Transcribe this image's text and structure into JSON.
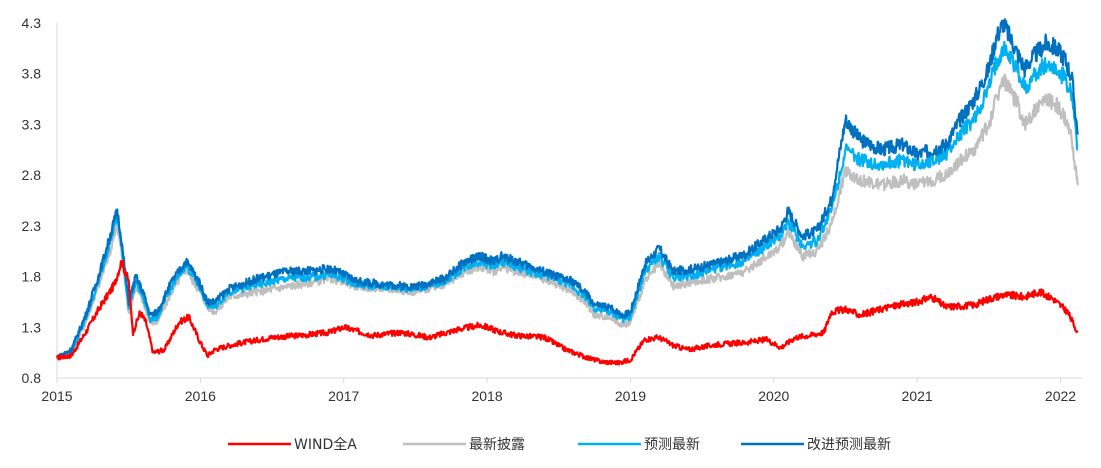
{
  "chart_data": {
    "type": "line",
    "title": "",
    "xlabel": "",
    "ylabel": "",
    "x_ticks": [
      "2015",
      "2016",
      "2017",
      "2018",
      "2019",
      "2020",
      "2021",
      "2022"
    ],
    "y_ticks": [
      "0.8",
      "1.3",
      "1.8",
      "2.3",
      "2.8",
      "3.3",
      "3.8",
      "4.3"
    ],
    "ylim": [
      0.8,
      4.3
    ],
    "xlim": [
      2015.0,
      2022.15
    ],
    "grid": false,
    "legend_position": "bottom",
    "series": [
      {
        "name": "WIND全A",
        "color": "#ff0000",
        "x": [
          2015.0,
          2015.1,
          2015.2,
          2015.3,
          2015.4,
          2015.45,
          2015.5,
          2015.53,
          2015.58,
          2015.62,
          2015.67,
          2015.75,
          2015.85,
          2015.92,
          2016.0,
          2016.05,
          2016.1,
          2016.2,
          2016.3,
          2016.5,
          2016.7,
          2016.9,
          2017.0,
          2017.2,
          2017.4,
          2017.6,
          2017.8,
          2017.95,
          2018.0,
          2018.1,
          2018.2,
          2018.4,
          2018.55,
          2018.7,
          2018.8,
          2018.92,
          2019.0,
          2019.1,
          2019.2,
          2019.3,
          2019.4,
          2019.6,
          2019.8,
          2019.95,
          2020.05,
          2020.15,
          2020.25,
          2020.35,
          2020.4,
          2020.5,
          2020.6,
          2020.8,
          2021.0,
          2021.1,
          2021.2,
          2021.4,
          2021.5,
          2021.6,
          2021.75,
          2021.85,
          2021.95,
          2022.05,
          2022.12
        ],
        "values": [
          1.0,
          1.02,
          1.25,
          1.5,
          1.72,
          1.95,
          1.75,
          1.25,
          1.45,
          1.35,
          1.05,
          1.08,
          1.35,
          1.4,
          1.15,
          1.02,
          1.08,
          1.12,
          1.15,
          1.2,
          1.22,
          1.25,
          1.3,
          1.22,
          1.25,
          1.2,
          1.28,
          1.32,
          1.3,
          1.25,
          1.22,
          1.2,
          1.08,
          1.0,
          0.96,
          0.95,
          0.98,
          1.18,
          1.2,
          1.12,
          1.08,
          1.13,
          1.15,
          1.18,
          1.1,
          1.2,
          1.22,
          1.25,
          1.45,
          1.48,
          1.42,
          1.5,
          1.55,
          1.6,
          1.5,
          1.52,
          1.58,
          1.62,
          1.6,
          1.65,
          1.58,
          1.45,
          1.25
        ]
      },
      {
        "name": "最新披露",
        "color": "#bfbfbf",
        "x": [
          2015.0,
          2015.1,
          2015.2,
          2015.3,
          2015.38,
          2015.42,
          2015.45,
          2015.5,
          2015.55,
          2015.6,
          2015.65,
          2015.7,
          2015.8,
          2015.9,
          2015.95,
          2016.0,
          2016.05,
          2016.1,
          2016.2,
          2016.4,
          2016.6,
          2016.8,
          2016.9,
          2017.0,
          2017.1,
          2017.3,
          2017.5,
          2017.7,
          2017.85,
          2017.95,
          2018.05,
          2018.1,
          2018.2,
          2018.3,
          2018.45,
          2018.6,
          2018.7,
          2018.75,
          2018.85,
          2018.95,
          2019.0,
          2019.1,
          2019.2,
          2019.3,
          2019.45,
          2019.65,
          2019.8,
          2019.95,
          2020.05,
          2020.1,
          2020.2,
          2020.3,
          2020.4,
          2020.5,
          2020.6,
          2020.75,
          2020.9,
          2021.0,
          2021.1,
          2021.2,
          2021.3,
          2021.4,
          2021.5,
          2021.55,
          2021.6,
          2021.7,
          2021.75,
          2021.8,
          2021.9,
          2021.97,
          2022.03,
          2022.08,
          2022.12
        ],
        "values": [
          1.0,
          1.05,
          1.35,
          1.75,
          2.1,
          2.3,
          2.05,
          1.45,
          1.7,
          1.55,
          1.35,
          1.35,
          1.65,
          1.88,
          1.75,
          1.65,
          1.5,
          1.45,
          1.6,
          1.65,
          1.7,
          1.75,
          1.78,
          1.75,
          1.7,
          1.68,
          1.65,
          1.72,
          1.85,
          1.9,
          1.85,
          1.9,
          1.85,
          1.82,
          1.75,
          1.65,
          1.52,
          1.42,
          1.4,
          1.32,
          1.35,
          1.75,
          1.92,
          1.7,
          1.75,
          1.8,
          1.85,
          2.0,
          2.1,
          2.25,
          2.0,
          2.05,
          2.3,
          2.85,
          2.75,
          2.7,
          2.75,
          2.7,
          2.75,
          2.8,
          2.95,
          3.05,
          3.3,
          3.55,
          3.75,
          3.5,
          3.3,
          3.4,
          3.55,
          3.5,
          3.35,
          3.15,
          2.7
        ]
      },
      {
        "name": "预测最新",
        "color": "#00b0f0",
        "x": [
          2015.0,
          2015.1,
          2015.2,
          2015.3,
          2015.38,
          2015.42,
          2015.45,
          2015.5,
          2015.55,
          2015.6,
          2015.65,
          2015.7,
          2015.8,
          2015.9,
          2015.95,
          2016.0,
          2016.05,
          2016.1,
          2016.2,
          2016.4,
          2016.6,
          2016.8,
          2016.9,
          2017.0,
          2017.1,
          2017.3,
          2017.5,
          2017.7,
          2017.85,
          2017.95,
          2018.05,
          2018.1,
          2018.2,
          2018.3,
          2018.45,
          2018.6,
          2018.7,
          2018.75,
          2018.85,
          2018.95,
          2019.0,
          2019.1,
          2019.2,
          2019.3,
          2019.45,
          2019.65,
          2019.8,
          2019.95,
          2020.05,
          2020.1,
          2020.2,
          2020.3,
          2020.4,
          2020.5,
          2020.6,
          2020.75,
          2020.9,
          2021.0,
          2021.1,
          2021.2,
          2021.3,
          2021.4,
          2021.5,
          2021.55,
          2021.6,
          2021.7,
          2021.75,
          2021.8,
          2021.9,
          2021.97,
          2022.03,
          2022.08,
          2022.12
        ],
        "values": [
          1.0,
          1.06,
          1.38,
          1.8,
          2.2,
          2.4,
          2.1,
          1.5,
          1.75,
          1.6,
          1.38,
          1.4,
          1.7,
          1.92,
          1.8,
          1.68,
          1.52,
          1.5,
          1.65,
          1.72,
          1.78,
          1.8,
          1.82,
          1.78,
          1.72,
          1.7,
          1.68,
          1.75,
          1.9,
          1.95,
          1.9,
          1.95,
          1.9,
          1.85,
          1.8,
          1.7,
          1.58,
          1.48,
          1.45,
          1.38,
          1.4,
          1.85,
          2.0,
          1.78,
          1.82,
          1.9,
          1.95,
          2.1,
          2.2,
          2.35,
          2.1,
          2.15,
          2.45,
          3.05,
          2.95,
          2.9,
          2.95,
          2.9,
          2.95,
          3.0,
          3.2,
          3.35,
          3.65,
          3.9,
          4.05,
          3.85,
          3.65,
          3.75,
          3.9,
          3.85,
          3.75,
          3.6,
          3.05
        ]
      },
      {
        "name": "改进预测最新",
        "color": "#0070c0",
        "x": [
          2015.0,
          2015.1,
          2015.2,
          2015.3,
          2015.38,
          2015.42,
          2015.45,
          2015.5,
          2015.55,
          2015.6,
          2015.65,
          2015.7,
          2015.8,
          2015.9,
          2015.95,
          2016.0,
          2016.05,
          2016.1,
          2016.2,
          2016.4,
          2016.6,
          2016.8,
          2016.9,
          2017.0,
          2017.1,
          2017.3,
          2017.5,
          2017.7,
          2017.85,
          2017.95,
          2018.05,
          2018.1,
          2018.2,
          2018.3,
          2018.45,
          2018.6,
          2018.7,
          2018.75,
          2018.85,
          2018.95,
          2019.0,
          2019.1,
          2019.2,
          2019.3,
          2019.45,
          2019.65,
          2019.8,
          2019.95,
          2020.05,
          2020.1,
          2020.2,
          2020.3,
          2020.4,
          2020.5,
          2020.6,
          2020.75,
          2020.9,
          2021.0,
          2021.1,
          2021.2,
          2021.3,
          2021.4,
          2021.5,
          2021.55,
          2021.6,
          2021.7,
          2021.75,
          2021.8,
          2021.9,
          2021.97,
          2022.03,
          2022.08,
          2022.12
        ],
        "values": [
          1.0,
          1.08,
          1.42,
          1.85,
          2.25,
          2.45,
          2.15,
          1.55,
          1.8,
          1.65,
          1.42,
          1.45,
          1.75,
          1.95,
          1.85,
          1.72,
          1.55,
          1.55,
          1.68,
          1.78,
          1.85,
          1.86,
          1.88,
          1.82,
          1.75,
          1.72,
          1.7,
          1.78,
          1.95,
          2.0,
          1.95,
          2.0,
          1.95,
          1.9,
          1.82,
          1.75,
          1.62,
          1.52,
          1.5,
          1.42,
          1.45,
          1.92,
          2.08,
          1.85,
          1.88,
          1.95,
          2.02,
          2.18,
          2.28,
          2.45,
          2.2,
          2.25,
          2.55,
          3.35,
          3.15,
          3.05,
          3.1,
          3.0,
          3.05,
          3.1,
          3.35,
          3.55,
          3.85,
          4.15,
          4.3,
          4.0,
          3.85,
          3.95,
          4.1,
          4.05,
          3.95,
          3.75,
          3.2
        ]
      }
    ]
  }
}
